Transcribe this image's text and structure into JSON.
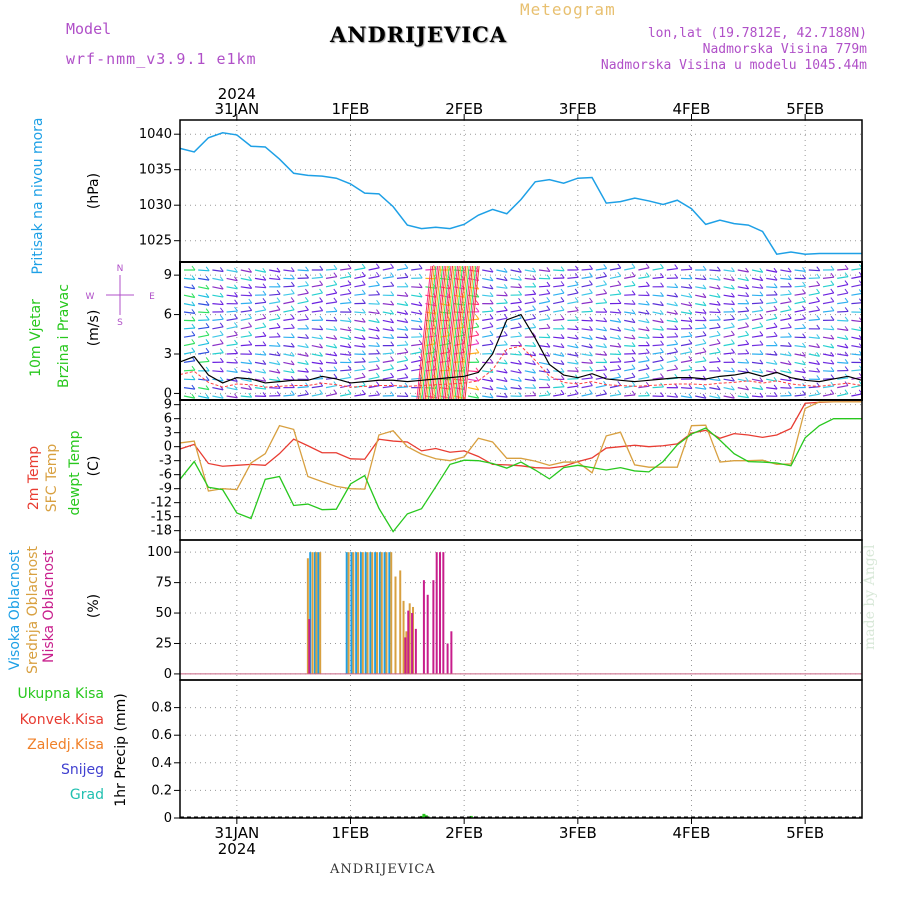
{
  "header": {
    "model_label": "Model",
    "model_name": "wrf-nmm_v3.9.1  e1km",
    "station": "ANDRIJEVICA",
    "title": "Meteogram",
    "lonlat": "lon,lat (19.7812E, 42.7188N)",
    "elevation": "Nadmorska Visina 779m",
    "model_elevation": "Nadmorska Visina u modelu 1045.44m",
    "year": "2024",
    "bottom_station": "ANDRIJEVICA",
    "credit": "made by Angel"
  },
  "dates": [
    "31JAN",
    "1FEB",
    "2FEB",
    "3FEB",
    "4FEB",
    "5FEB"
  ],
  "panel_labels": {
    "pressure": [
      "Pritisak na nivou mora",
      "(hPa)"
    ],
    "wind": [
      "10m Vjetar",
      "Brzina i Pravac",
      "(m/s)"
    ],
    "compass": [
      "N",
      "S",
      "W",
      "E"
    ],
    "temp": [
      "2m Temp",
      "SFC Temp",
      "dewpt Temp",
      "(C)"
    ],
    "cloud": [
      "Visoka Oblacnost",
      "Srednja Oblacnost",
      "Niska Oblacnost",
      "(%)"
    ],
    "precip_unit": "1hr Precip (mm)"
  },
  "precip_legend": [
    "Ukupna Kisa",
    "Konvek.Kisa",
    "Zaledj.Kisa",
    "Snijeg",
    "Grad"
  ],
  "colors": {
    "pressure": "#1ea0e6",
    "t2m": "#e83c32",
    "tsfc": "#d8a040",
    "dewpt": "#28c81e",
    "high_cloud": "#1ea0e6",
    "mid_cloud": "#d8a040",
    "low_cloud": "#c81e8c",
    "rain_total": "#28c81e",
    "rain_conv": "#e83c32",
    "freezing": "#f08028",
    "snow": "#4040d0",
    "hail": "#20c0b0",
    "model_label": "#b050c8"
  },
  "chart_data": [
    {
      "type": "line",
      "title": "Pritisak na nivou mora",
      "ylabel": "(hPa)",
      "ylim": [
        1022,
        1042
      ],
      "yticks": [
        1025,
        1030,
        1035,
        1040
      ],
      "x_unit": "hours from 2024-01-30 12:00",
      "series": [
        {
          "name": "Pritisak na nivou mora",
          "x": [
            0,
            3,
            6,
            9,
            12,
            15,
            18,
            21,
            24,
            27,
            30,
            33,
            36,
            39,
            42,
            45,
            48,
            51,
            54,
            57,
            60,
            63,
            66,
            69,
            72,
            75,
            78,
            81,
            84,
            87,
            90,
            93,
            96,
            99,
            102,
            105,
            108,
            111,
            114,
            117,
            120,
            123,
            126,
            129,
            132,
            135,
            138,
            141,
            144
          ],
          "y": [
            1038,
            1037.5,
            1039.5,
            1040.2,
            1039.9,
            1038.3,
            1038.2,
            1036.5,
            1034.5,
            1034.2,
            1034.1,
            1033.8,
            1033,
            1031.7,
            1031.6,
            1029.8,
            1027.2,
            1026.7,
            1026.9,
            1026.7,
            1027.3,
            1028.6,
            1029.4,
            1028.8,
            1030.8,
            1033.3,
            1033.6,
            1033.1,
            1033.8,
            1033.9,
            1030.3,
            1030.5,
            1031,
            1030.6,
            1030.1,
            1030.7,
            1029.5,
            1027.3,
            1027.9,
            1027.4,
            1027.2,
            1026.3,
            1023.1,
            1023.4,
            1023.1,
            1023.2,
            1023.2,
            1023.2,
            1023.2
          ]
        }
      ]
    },
    {
      "type": "line",
      "title": "10m Vjetar Brzina i Pravac",
      "ylabel": "(m/s)",
      "ylim": [
        -0.5,
        10
      ],
      "yticks": [
        0,
        3,
        6,
        9
      ],
      "series": [
        {
          "name": "Brzina",
          "x": [
            0,
            3,
            6,
            9,
            12,
            15,
            18,
            21,
            24,
            27,
            30,
            33,
            36,
            39,
            42,
            45,
            48,
            51,
            54,
            57,
            60,
            63,
            66,
            69,
            72,
            75,
            78,
            81,
            84,
            87,
            90,
            93,
            96,
            99,
            102,
            105,
            108,
            111,
            114,
            117,
            120,
            123,
            126,
            129,
            132,
            135,
            138,
            141,
            144
          ],
          "y": [
            2.4,
            2.8,
            1.4,
            0.8,
            1.2,
            1.1,
            0.8,
            0.9,
            1.0,
            1.0,
            1.3,
            1.1,
            0.8,
            0.9,
            1.0,
            1.0,
            0.9,
            1.0,
            1.1,
            1.2,
            1.3,
            1.6,
            3.0,
            5.6,
            6.0,
            4.2,
            2.2,
            1.4,
            1.2,
            1.5,
            1.1,
            1.0,
            0.9,
            1.0,
            1.1,
            1.2,
            1.2,
            1.1,
            1.3,
            1.4,
            1.6,
            1.3,
            1.6,
            1.2,
            1.0,
            0.9,
            1.1,
            1.3,
            1.0
          ]
        }
      ]
    },
    {
      "type": "line",
      "title": "2m Temp / SFC Temp / dewpt Temp",
      "ylabel": "(C)",
      "ylim": [
        -20,
        10
      ],
      "yticks": [
        -18,
        -15,
        -12,
        -9,
        -6,
        -3,
        0,
        3,
        6,
        9
      ],
      "series": [
        {
          "name": "2m Temp",
          "x": [
            0,
            3,
            6,
            9,
            12,
            15,
            18,
            21,
            24,
            27,
            30,
            33,
            36,
            39,
            42,
            45,
            48,
            51,
            54,
            57,
            60,
            63,
            66,
            69,
            72,
            75,
            78,
            81,
            84,
            87,
            90,
            93,
            96,
            99,
            102,
            105,
            108,
            111,
            114,
            117,
            120,
            123,
            126,
            129,
            132,
            135,
            138,
            141,
            144
          ],
          "y": [
            -0.5,
            0.5,
            -3.6,
            -4.2,
            -4.0,
            -3.8,
            -4.0,
            -1.5,
            1.6,
            0.2,
            -1.3,
            -1.3,
            -2.6,
            -2.7,
            1.6,
            1.2,
            1.0,
            -0.9,
            -0.4,
            -1.2,
            -0.9,
            -2.1,
            -3.8,
            -3.9,
            -4.1,
            -4.5,
            -4.6,
            -4.2,
            -3.2,
            -2.4,
            -0.3,
            0.0,
            0.3,
            0.0,
            0.2,
            0.6,
            2.9,
            3.5,
            1.8,
            2.8,
            2.5,
            2.0,
            2.5,
            3.9,
            9.3,
            9.5,
            9.6,
            9.6,
            9.6
          ]
        },
        {
          "name": "SFC Temp",
          "x": [
            0,
            3,
            6,
            9,
            12,
            15,
            18,
            21,
            24,
            27,
            30,
            33,
            36,
            39,
            42,
            45,
            48,
            51,
            54,
            57,
            60,
            63,
            66,
            69,
            72,
            75,
            78,
            81,
            84,
            87,
            90,
            93,
            96,
            99,
            102,
            105,
            108,
            111,
            114,
            117,
            120,
            123,
            126,
            129,
            132,
            135,
            138,
            141,
            144
          ],
          "y": [
            0.8,
            1.2,
            -9.5,
            -9.0,
            -9.2,
            -3.5,
            -1.5,
            4.5,
            3.7,
            -6.4,
            -7.5,
            -8.5,
            -9.0,
            -9.1,
            2.5,
            3.4,
            0.0,
            -1.6,
            -2.6,
            -3.0,
            -2.2,
            1.8,
            1.0,
            -2.5,
            -2.5,
            -3.1,
            -4.0,
            -3.3,
            -3.3,
            -5.6,
            2.3,
            3.1,
            -3.9,
            -4.4,
            -4.4,
            -4.4,
            4.5,
            4.6,
            -3.3,
            -3.0,
            -3.0,
            -2.9,
            -3.8,
            -3.7,
            8.2,
            9.6,
            9.6,
            9.6,
            9.6
          ]
        },
        {
          "name": "dewpt Temp",
          "x": [
            0,
            3,
            6,
            9,
            12,
            15,
            18,
            21,
            24,
            27,
            30,
            33,
            36,
            39,
            42,
            45,
            48,
            51,
            54,
            57,
            60,
            63,
            66,
            69,
            72,
            75,
            78,
            81,
            84,
            87,
            90,
            93,
            96,
            99,
            102,
            105,
            108,
            111,
            114,
            117,
            120,
            123,
            126,
            129,
            132,
            135,
            138,
            141,
            144
          ],
          "y": [
            -7.0,
            -3.2,
            -8.7,
            -9.2,
            -14.2,
            -15.4,
            -7.0,
            -6.4,
            -12.6,
            -12.3,
            -13.5,
            -13.4,
            -8.0,
            -6.2,
            -13.2,
            -18.2,
            -14.4,
            -13.3,
            -8.6,
            -3.8,
            -2.9,
            -3.0,
            -3.6,
            -4.6,
            -3.3,
            -5.0,
            -6.9,
            -4.5,
            -4.0,
            -4.5,
            -5.0,
            -4.5,
            -5.2,
            -5.4,
            -3.2,
            0.4,
            2.7,
            4.0,
            1.4,
            -1.5,
            -3.2,
            -3.3,
            -3.5,
            -4.1,
            1.9,
            4.5,
            6.0,
            6.0,
            6.0
          ]
        }
      ]
    },
    {
      "type": "bar",
      "title": "Visoka / Srednja / Niska Oblacnost",
      "ylabel": "(%)",
      "ylim": [
        -5,
        110
      ],
      "yticks": [
        0,
        25,
        50,
        75,
        100
      ],
      "series": [
        {
          "name": "Visoka Oblacnost",
          "x": [
            27.5,
            28.5,
            29.2,
            35.2,
            36.2,
            37.2,
            38.2,
            39.2,
            40.2,
            41.2,
            42.2,
            43.2,
            44.2
          ],
          "y": [
            100,
            100,
            100,
            100,
            100,
            100,
            100,
            100,
            100,
            100,
            100,
            100,
            100
          ]
        },
        {
          "name": "Srednja Oblacnost",
          "x": [
            27.0,
            28.0,
            28.8,
            29.6,
            35.6,
            36.6,
            37.6,
            38.6,
            39.6,
            40.6,
            41.6,
            42.6,
            43.6,
            44.6,
            45.5,
            46.5,
            47.2,
            47.8,
            48.5,
            49.2
          ],
          "y": [
            95,
            100,
            100,
            100,
            100,
            100,
            100,
            100,
            100,
            100,
            100,
            100,
            100,
            100,
            80,
            85,
            60,
            35,
            58,
            55
          ]
        },
        {
          "name": "Niska Oblacnost",
          "x": [
            27.3,
            47.6,
            48.2,
            49.0,
            49.8,
            51.5,
            52.3,
            53.5,
            54.2,
            54.9,
            55.6,
            56.5,
            57.3
          ],
          "y": [
            45,
            30,
            52,
            50,
            37,
            77,
            65,
            77,
            100,
            100,
            100,
            25,
            35
          ]
        }
      ]
    },
    {
      "type": "bar",
      "title": "1hr Precip",
      "ylabel": "1hr Precip (mm)",
      "ylim": [
        0,
        1.0
      ],
      "yticks": [
        0,
        0.2,
        0.4,
        0.6,
        0.8
      ],
      "series": [
        {
          "name": "Ukupna Kisa",
          "x": [
            51.0,
            51.5,
            52.0,
            52.5,
            61.5
          ],
          "y": [
            0.015,
            0.03,
            0.02,
            0.01,
            0.015
          ]
        },
        {
          "name": "Konvek.Kisa",
          "x": [],
          "y": []
        },
        {
          "name": "Zaledj.Kisa",
          "x": [],
          "y": []
        },
        {
          "name": "Snijeg",
          "x": [
            52.0
          ],
          "y": [
            0.01
          ]
        },
        {
          "name": "Grad",
          "x": [],
          "y": []
        }
      ]
    }
  ]
}
